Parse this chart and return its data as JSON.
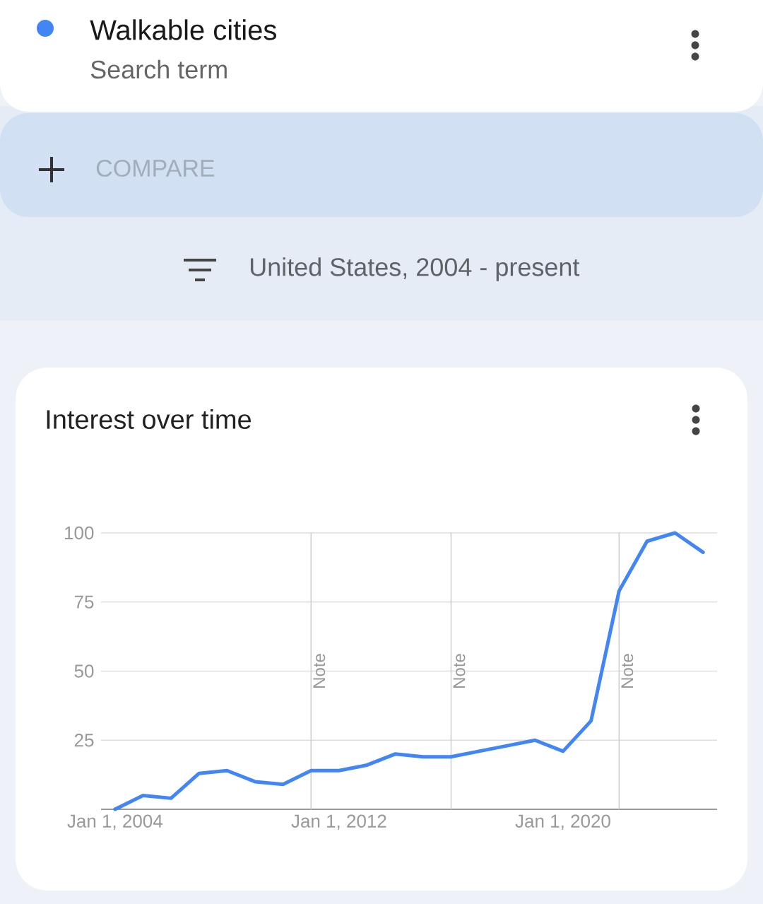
{
  "chart_data": {
    "type": "line",
    "title": "Interest over time",
    "annotations": [
      "Search term",
      "COMPARE",
      "United States, 2004 - present"
    ],
    "x": [
      "2004",
      "2005",
      "2006",
      "2007",
      "2008",
      "2009",
      "2010",
      "2011",
      "2012",
      "2013",
      "2014",
      "2015",
      "2016",
      "2017",
      "2018",
      "2019",
      "2020",
      "2021",
      "2022",
      "2023",
      "2024",
      "2025"
    ],
    "series": [
      {
        "name": "Walkable cities",
        "color": "#4285f4",
        "values": [
          0,
          5,
          4,
          13,
          14,
          10,
          9,
          14,
          14,
          16,
          20,
          19,
          19,
          21,
          23,
          25,
          21,
          32,
          79,
          97,
          100,
          93
        ]
      }
    ],
    "xlim": [
      "2003-07",
      "2025-07"
    ],
    "ylim": [
      0,
      100
    ],
    "xticks": [
      {
        "value": "2004-01-01",
        "label": "Jan 1, 2004"
      },
      {
        "value": "2012-01-01",
        "label": "Jan 1, 2012"
      },
      {
        "value": "2020-01-01",
        "label": "Jan 1, 2020"
      }
    ],
    "yticks": [
      25,
      50,
      75,
      100
    ],
    "ref_lines": [
      {
        "axis": "x",
        "value": "2011",
        "label": "Note",
        "color": "#cccccc"
      },
      {
        "axis": "x",
        "value": "2016",
        "label": "Note",
        "color": "#cccccc"
      },
      {
        "axis": "x",
        "value": "2022",
        "label": "Note",
        "color": "#cccccc"
      }
    ],
    "grid": "y",
    "legend": "top left",
    "marker": "none",
    "line_style": "solid"
  }
}
